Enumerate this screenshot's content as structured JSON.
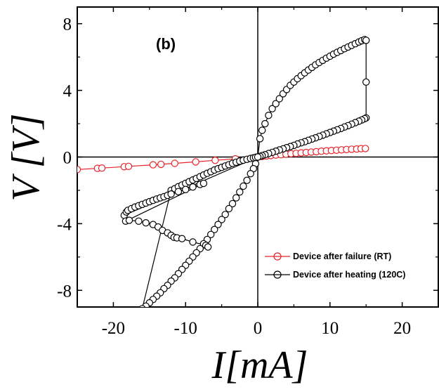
{
  "chart_data": {
    "type": "scatter",
    "panel_label": "(b)",
    "xlabel": "I[mA]",
    "ylabel": "V [V]",
    "xlim": [
      -25,
      25
    ],
    "ylim": [
      -9,
      9
    ],
    "xticks": [
      -20,
      -10,
      0,
      10,
      20
    ],
    "yticks": [
      -8,
      -4,
      0,
      4,
      8
    ],
    "xtick_labels": [
      "-20",
      "-10",
      "0",
      "10",
      "20"
    ],
    "ytick_labels": [
      "-8",
      "-4",
      "0",
      "4",
      "8"
    ],
    "legend_position": "lower-right",
    "series": [
      {
        "name": "Device after failure (RT)",
        "color": "#e8232a",
        "marker": "open-circle",
        "line": true,
        "x": [
          -25,
          -22.2,
          -21.6,
          -18.5,
          -17.9,
          -14.5,
          -13.4,
          -11.5,
          -8.6,
          -5.9,
          -3.1,
          -0.2,
          0,
          0.6,
          1.2,
          1.8,
          2.5,
          3.2,
          3.9,
          4.6,
          5.3,
          6.0,
          6.7,
          7.4,
          8.1,
          8.8,
          9.5,
          10.2,
          10.9,
          11.6,
          12.3,
          13.0,
          13.7,
          14.3,
          14.9
        ],
        "y": [
          -0.75,
          -0.68,
          -0.66,
          -0.58,
          -0.56,
          -0.47,
          -0.44,
          -0.38,
          -0.29,
          -0.2,
          -0.11,
          -0.01,
          0,
          0.03,
          0.06,
          0.09,
          0.12,
          0.14,
          0.17,
          0.2,
          0.22,
          0.25,
          0.27,
          0.3,
          0.32,
          0.35,
          0.37,
          0.39,
          0.41,
          0.43,
          0.45,
          0.47,
          0.48,
          0.5,
          0.51
        ]
      },
      {
        "name": "Device after heating (120C)",
        "color": "#000000",
        "marker": "open-circle",
        "line": true,
        "x": [
          0,
          0.3,
          0.6,
          1.0,
          1.5,
          2.0,
          2.5,
          3.0,
          3.5,
          4.0,
          4.5,
          5.0,
          5.5,
          6.0,
          6.5,
          7.0,
          7.5,
          8.0,
          8.5,
          9.0,
          9.5,
          10.0,
          10.5,
          11.0,
          11.5,
          12.0,
          12.5,
          13.0,
          13.5,
          14.0,
          14.4,
          14.8,
          15.0,
          15.0,
          15.0,
          14.8,
          14.4,
          14.0,
          13.5,
          13.0,
          12.5,
          12.0,
          11.5,
          11.0,
          10.5,
          10.0,
          9.5,
          9.0,
          8.5,
          8.0,
          7.5,
          7.0,
          6.5,
          6.0,
          5.5,
          5.0,
          4.5,
          4.0,
          3.5,
          3.0,
          2.5,
          2.0,
          1.5,
          1.0,
          0.6,
          0.3,
          0,
          -0.3,
          -0.6,
          -1.0,
          -1.5,
          -2.0,
          -2.5,
          -3.0,
          -3.5,
          -4.0,
          -4.5,
          -5.0,
          -5.5,
          -6.0,
          -6.5,
          -7.0,
          -7.5,
          -8.0,
          -8.5,
          -9.0,
          -9.5,
          -10.0,
          -10.5,
          -11.0,
          -11.5,
          -12.0,
          -12.5,
          -13.0,
          -13.5,
          -14.0,
          -14.5,
          -15.0,
          -15.5,
          -16.0,
          -12.0,
          -11.5,
          -11.0,
          -10.5,
          -10.0,
          -9.5,
          -9.0,
          -8.5,
          -8.0,
          -7.5,
          -7.0,
          -6.5,
          -6.0,
          -5.5,
          -5.0,
          -4.5,
          -4.0,
          -3.5,
          -3.0,
          -2.5,
          -2.0,
          -1.5,
          -1.0,
          -0.6,
          -0.3,
          0,
          -18.5,
          -18.2,
          -18.0,
          -17.5,
          -17.0,
          -16.5,
          -16.0,
          -15.5,
          -15.0,
          -14.5,
          -14.0,
          -13.5,
          -13.0,
          -12.5,
          -12.0,
          -11.0,
          -10.0,
          -9.0,
          -8.0,
          -7.5,
          -18.3,
          -17.8,
          -16.5,
          -15.5,
          -14.5,
          -13.8,
          -13.2,
          -12.5,
          -12.0,
          -11.6,
          -11.2,
          -10.5,
          -9.0,
          -7.2,
          -6.9
        ],
        "y": [
          0,
          1.1,
          1.6,
          2.0,
          2.5,
          2.9,
          3.2,
          3.5,
          3.8,
          4.05,
          4.3,
          4.5,
          4.7,
          4.88,
          5.05,
          5.22,
          5.38,
          5.53,
          5.67,
          5.8,
          5.93,
          6.05,
          6.17,
          6.28,
          6.39,
          6.5,
          6.6,
          6.7,
          6.8,
          6.9,
          6.98,
          7.05,
          7.0,
          4.5,
          2.35,
          2.3,
          2.22,
          2.15,
          2.06,
          1.97,
          1.88,
          1.8,
          1.71,
          1.63,
          1.55,
          1.47,
          1.39,
          1.31,
          1.23,
          1.15,
          1.08,
          1.0,
          0.92,
          0.85,
          0.78,
          0.7,
          0.63,
          0.56,
          0.49,
          0.42,
          0.35,
          0.28,
          0.21,
          0.14,
          0.09,
          0.04,
          0,
          -0.4,
          -0.7,
          -1.0,
          -1.4,
          -1.75,
          -2.1,
          -2.45,
          -2.8,
          -3.1,
          -3.45,
          -3.75,
          -4.05,
          -4.35,
          -4.65,
          -4.95,
          -5.2,
          -5.5,
          -5.75,
          -6.0,
          -6.25,
          -6.5,
          -6.75,
          -7.0,
          -7.25,
          -7.45,
          -7.7,
          -7.9,
          -8.15,
          -8.35,
          -8.55,
          -8.75,
          -8.95,
          -9.1,
          -2.0,
          -1.9,
          -1.78,
          -1.68,
          -1.58,
          -1.48,
          -1.38,
          -1.28,
          -1.18,
          -1.08,
          -0.98,
          -0.88,
          -0.78,
          -0.7,
          -0.62,
          -0.54,
          -0.46,
          -0.38,
          -0.31,
          -0.25,
          -0.19,
          -0.14,
          -0.09,
          -0.05,
          -0.02,
          0,
          -3.5,
          -3.3,
          -3.2,
          -3.1,
          -3.0,
          -2.92,
          -2.84,
          -2.76,
          -2.68,
          -2.6,
          -2.52,
          -2.45,
          -2.38,
          -2.3,
          -2.22,
          -2.08,
          -1.95,
          -1.8,
          -1.65,
          -1.58,
          -3.85,
          -3.8,
          -3.85,
          -3.95,
          -4.05,
          -4.2,
          -4.4,
          -4.55,
          -4.7,
          -4.82,
          -4.85,
          -4.9,
          -5.1,
          -5.3,
          -5.4
        ]
      }
    ]
  }
}
